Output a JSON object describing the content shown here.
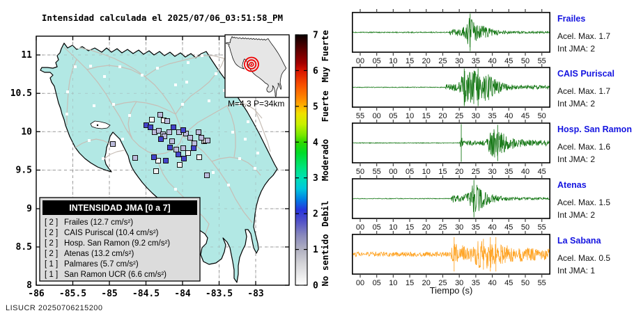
{
  "title": "Intensidad calculada el 2025/07/06_03:51:58_PM",
  "footer": "LISUCR 20250706215200",
  "map": {
    "x_tick_labels": [
      "-86",
      "-85.5",
      "-85",
      "-84.5",
      "-84",
      "-83.5",
      "-83"
    ],
    "y_tick_labels": [
      "8",
      "8.5",
      "9",
      "9.5",
      "10",
      "10.5",
      "11"
    ],
    "inset_label": "M=4.3 P=34km",
    "legend": {
      "header": "INTENSIDAD JMA [0 a 7]",
      "rows": [
        {
          "level": "[ 2 ]",
          "label": "Frailes (12.7 cm/s²)"
        },
        {
          "level": "[ 2 ]",
          "label": "CAIS Puriscal (10.4 cm/s²)"
        },
        {
          "level": "[ 2 ]",
          "label": "Hosp. San Ramon (9.2 cm/s²)"
        },
        {
          "level": "[ 2 ]",
          "label": "Atenas (13.2 cm/s²)"
        },
        {
          "level": "[ 1 ]",
          "label": "Palmares (5.7 cm/s²)"
        },
        {
          "level": "[ 1 ]",
          "label": "San Ramon UCR (6.6 cm/s²)"
        }
      ]
    },
    "colorbar": {
      "tick_labels": [
        "0",
        "1",
        "2",
        "3",
        "4",
        "5",
        "6",
        "7"
      ],
      "categories": [
        {
          "text": "No sentido",
          "value": 0.7
        },
        {
          "text": "Debil",
          "value": 2.0
        },
        {
          "text": "Moderado",
          "value": 3.5
        },
        {
          "text": "Fuerte",
          "value": 5.0
        },
        {
          "text": "Muy Fuerte",
          "value": 6.4
        }
      ],
      "gradient": [
        {
          "value": 0.0,
          "color": "#ffffff"
        },
        {
          "value": 0.2,
          "color": "#f0f0f0"
        },
        {
          "value": 0.6,
          "color": "#d4d4d8"
        },
        {
          "value": 1.0,
          "color": "#b0b0c0"
        },
        {
          "value": 1.4,
          "color": "#8888bc"
        },
        {
          "value": 1.8,
          "color": "#5050c8"
        },
        {
          "value": 2.1,
          "color": "#2834dc"
        },
        {
          "value": 2.4,
          "color": "#0080e4"
        },
        {
          "value": 2.7,
          "color": "#00c8dc"
        },
        {
          "value": 3.0,
          "color": "#00e0b4"
        },
        {
          "value": 3.3,
          "color": "#00e47c"
        },
        {
          "value": 3.7,
          "color": "#00dc28"
        },
        {
          "value": 4.0,
          "color": "#30d800"
        },
        {
          "value": 4.2,
          "color": "#78e800"
        },
        {
          "value": 4.5,
          "color": "#c8f000"
        },
        {
          "value": 4.8,
          "color": "#f0e000"
        },
        {
          "value": 5.0,
          "color": "#ffb400"
        },
        {
          "value": 5.2,
          "color": "#ff8c00"
        },
        {
          "value": 5.6,
          "color": "#f85000"
        },
        {
          "value": 6.0,
          "color": "#d81400"
        },
        {
          "value": 6.2,
          "color": "#a40000"
        },
        {
          "value": 6.6,
          "color": "#5a0000"
        },
        {
          "value": 7.0,
          "color": "#0a0000"
        }
      ]
    }
  },
  "seismo": {
    "xlabel": "Tiempo (s)"
  },
  "colors": {
    "land": "#b2e8e4",
    "coast": "#000000",
    "roads": "#c7beb6",
    "grid": "#9a9a9a",
    "legend_bg": "#dcdcdc",
    "inset_land": "#e6e6e6",
    "epicenter": "#ee0000",
    "marker_int2": "#4343cb",
    "marker_int1": "#bcbcdc",
    "marker_int0": "#f4f4f4",
    "station_label": "#1414e0",
    "trace_green": "#1a7a1a",
    "trace_orange": "#ffa425"
  },
  "chart_data": {
    "type": "seismogram-intensity-figure",
    "event": {
      "magnitude": 4.3,
      "depth_km": 34,
      "datetime": "2025/07/06_03:51:58_PM"
    },
    "stations": [
      {
        "name": "Frailes",
        "int_jma": 2,
        "acel_cm_s2": 12.7
      },
      {
        "name": "CAIS Puriscal",
        "int_jma": 2,
        "acel_cm_s2": 10.4
      },
      {
        "name": "Hosp. San Ramon",
        "int_jma": 2,
        "acel_cm_s2": 9.2
      },
      {
        "name": "Atenas",
        "int_jma": 2,
        "acel_cm_s2": 13.2
      },
      {
        "name": "Palmares",
        "int_jma": 1,
        "acel_cm_s2": 5.7
      },
      {
        "name": "San Ramon UCR",
        "int_jma": 1,
        "acel_cm_s2": 6.6
      }
    ],
    "intensity_scale": {
      "name": "INTENSIDAD JMA",
      "range": [
        0,
        7
      ],
      "categories": [
        "No sentido",
        "Debil",
        "Moderado",
        "Fuerte",
        "Muy Fuerte"
      ]
    },
    "traces": [
      {
        "name": "Frailes",
        "acel_label": "Acel. Max. 1.7",
        "int_label": "Int JMA: 2",
        "acel_max": 1.7,
        "int_jma": 2,
        "color": "#1a7a1a",
        "tick_labels": [
          "00",
          "05",
          "10",
          "15",
          "20",
          "25",
          "30",
          "35",
          "40",
          "45",
          "50",
          "55"
        ],
        "envelope": [
          [
            0,
            0.025
          ],
          [
            0.49,
            0.03
          ],
          [
            0.5,
            0.18
          ],
          [
            0.555,
            0.22
          ],
          [
            0.575,
            0.38
          ],
          [
            0.595,
            1
          ],
          [
            0.615,
            0.72
          ],
          [
            0.63,
            0.45
          ],
          [
            0.66,
            0.38
          ],
          [
            0.7,
            0.22
          ],
          [
            0.75,
            0.12
          ],
          [
            0.82,
            0.07
          ],
          [
            1,
            0.05
          ]
        ],
        "spikes": [
          [
            0.598,
            1.05
          ]
        ]
      },
      {
        "name": "CAIS Puriscal",
        "acel_label": "Acel. Max. 1.7",
        "int_label": "Int JMA: 2",
        "acel_max": 1.7,
        "int_jma": 2,
        "color": "#1a7a1a",
        "tick_labels": [
          "55",
          "00",
          "05",
          "10",
          "15",
          "20",
          "25",
          "30",
          "35",
          "40",
          "45",
          "50"
        ],
        "envelope": [
          [
            0,
            0.02
          ],
          [
            0.47,
            0.02
          ],
          [
            0.48,
            0.2
          ],
          [
            0.53,
            0.22
          ],
          [
            0.55,
            0.5
          ],
          [
            0.57,
            1
          ],
          [
            0.6,
            0.85
          ],
          [
            0.62,
            0.95
          ],
          [
            0.65,
            0.7
          ],
          [
            0.68,
            0.8
          ],
          [
            0.71,
            0.55
          ],
          [
            0.74,
            0.35
          ],
          [
            0.78,
            0.18
          ],
          [
            0.85,
            0.12
          ],
          [
            1,
            0.1
          ]
        ],
        "spikes": [
          [
            0.568,
            1.05
          ],
          [
            0.638,
            1.05
          ]
        ]
      },
      {
        "name": "Hosp. San Ramon",
        "acel_label": "Acel. Max. 1.6",
        "int_label": "Int JMA: 2",
        "acel_max": 1.6,
        "int_jma": 2,
        "color": "#1a7a1a",
        "tick_labels": [
          "50",
          "55",
          "00",
          "05",
          "10",
          "15",
          "20",
          "25",
          "30",
          "35",
          "40",
          "45"
        ],
        "envelope": [
          [
            0,
            0.02
          ],
          [
            0.545,
            0.02
          ],
          [
            0.552,
            0.6
          ],
          [
            0.56,
            0.12
          ],
          [
            0.6,
            0.14
          ],
          [
            0.64,
            0.12
          ],
          [
            0.68,
            0.16
          ],
          [
            0.695,
            0.55
          ],
          [
            0.72,
            0.85
          ],
          [
            0.75,
            0.7
          ],
          [
            0.78,
            0.5
          ],
          [
            0.82,
            0.3
          ],
          [
            0.88,
            0.18
          ],
          [
            1,
            0.15
          ]
        ],
        "spikes": [
          [
            0.553,
            1.05
          ],
          [
            0.737,
            1.0
          ]
        ]
      },
      {
        "name": "Atenas",
        "acel_label": "Acel. Max. 1.5",
        "int_label": "Int JMA: 2",
        "acel_max": 1.5,
        "int_jma": 2,
        "color": "#1a7a1a",
        "tick_labels": [
          "00",
          "05",
          "10",
          "15",
          "20",
          "25",
          "30",
          "35",
          "40",
          "45",
          "50",
          "55"
        ],
        "envelope": [
          [
            0,
            0.02
          ],
          [
            0.5,
            0.02
          ],
          [
            0.508,
            0.22
          ],
          [
            0.55,
            0.18
          ],
          [
            0.575,
            0.28
          ],
          [
            0.6,
            0.5
          ],
          [
            0.615,
            1
          ],
          [
            0.64,
            0.78
          ],
          [
            0.66,
            0.55
          ],
          [
            0.69,
            0.35
          ],
          [
            0.72,
            0.25
          ],
          [
            0.76,
            0.15
          ],
          [
            0.82,
            0.08
          ],
          [
            1,
            0.06
          ]
        ],
        "spikes": [
          [
            0.617,
            1.05
          ]
        ]
      },
      {
        "name": "La Sabana",
        "acel_label": "Acel. Max. 0.5",
        "int_label": "Int JMA: 1",
        "acel_max": 0.5,
        "int_jma": 1,
        "color": "#ffa425",
        "tick_labels": [
          "00",
          "05",
          "10",
          "15",
          "20",
          "25",
          "30",
          "35",
          "40",
          "45",
          "50",
          "55"
        ],
        "envelope": [
          [
            0,
            0.12
          ],
          [
            0.5,
            0.13
          ],
          [
            0.515,
            0.8
          ],
          [
            0.53,
            0.55
          ],
          [
            0.56,
            0.5
          ],
          [
            0.59,
            0.45
          ],
          [
            0.62,
            0.65
          ],
          [
            0.65,
            0.8
          ],
          [
            0.67,
            0.6
          ],
          [
            0.69,
            0.9
          ],
          [
            0.71,
            0.65
          ],
          [
            0.74,
            0.55
          ],
          [
            0.78,
            0.5
          ],
          [
            0.82,
            0.45
          ],
          [
            0.88,
            0.38
          ],
          [
            1,
            0.3
          ]
        ],
        "spikes": [
          [
            0.517,
            0.95
          ],
          [
            0.665,
            0.85
          ],
          [
            0.7,
            0.95
          ],
          [
            0.728,
            0.95
          ]
        ]
      }
    ],
    "map_markers": {
      "int2": [
        [
          210,
          180
        ],
        [
          216,
          183
        ],
        [
          244,
          212
        ],
        [
          263,
          187
        ],
        [
          221,
          226
        ],
        [
          264,
          228
        ],
        [
          278,
          213
        ],
        [
          249,
          183
        ],
        [
          231,
          200
        ],
        [
          256,
          222
        ],
        [
          238,
          231
        ]
      ],
      "int1": [
        [
          222,
          190
        ],
        [
          230,
          165
        ],
        [
          240,
          174
        ],
        [
          228,
          188
        ],
        [
          234,
          193
        ],
        [
          243,
          190
        ],
        [
          257,
          190
        ],
        [
          267,
          192
        ],
        [
          273,
          198
        ],
        [
          285,
          190
        ],
        [
          289,
          198
        ],
        [
          298,
          202
        ],
        [
          253,
          215
        ],
        [
          263,
          213
        ],
        [
          194,
          227
        ],
        [
          162,
          207
        ],
        [
          297,
          252
        ],
        [
          236,
          196
        ],
        [
          247,
          203
        ],
        [
          279,
          206
        ]
      ],
      "int0": [
        [
          235,
          173
        ],
        [
          270,
          220
        ],
        [
          293,
          203
        ],
        [
          258,
          237
        ],
        [
          227,
          231
        ],
        [
          295,
          202
        ],
        [
          224,
          246
        ],
        [
          286,
          226
        ],
        [
          218,
          172
        ]
      ]
    }
  }
}
